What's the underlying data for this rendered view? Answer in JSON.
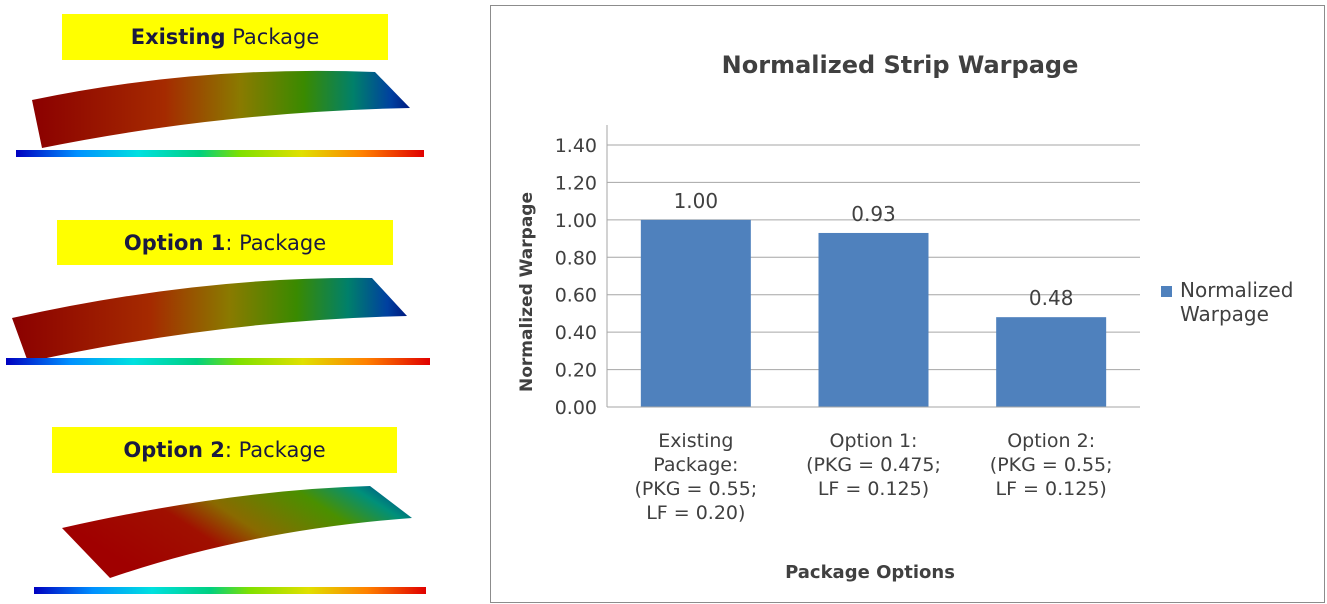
{
  "panels": [
    {
      "bold": "Existing",
      "rest": " Package"
    },
    {
      "bold": "Option 1",
      "rest": ": Package"
    },
    {
      "bold": "Option 2",
      "rest": ": Package"
    }
  ],
  "chart_data": {
    "type": "bar",
    "title": "Normalized Strip Warpage",
    "x_label": "Package Options",
    "y_label": "Normalized Warpage",
    "categories": [
      [
        "Existing",
        "Package:",
        "(PKG = 0.55;",
        "LF = 0.20)"
      ],
      [
        "Option 1:",
        "(PKG = 0.475;",
        "LF = 0.125)"
      ],
      [
        "Option 2:",
        "(PKG = 0.55;",
        "LF = 0.125)"
      ]
    ],
    "series": [
      {
        "name": "Normalized Warpage",
        "color": "#4f81bd",
        "values": [
          1.0,
          0.93,
          0.48
        ],
        "value_labels": [
          "1.00",
          "0.93",
          "0.48"
        ]
      }
    ],
    "ylim": [
      0,
      1.4
    ],
    "yticks": [
      {
        "value": 0,
        "label": "0.00"
      },
      {
        "value": 0.2,
        "label": "0.20"
      },
      {
        "value": 0.4,
        "label": "0.40"
      },
      {
        "value": 0.6,
        "label": "0.60"
      },
      {
        "value": 0.8,
        "label": "0.80"
      },
      {
        "value": 1.0,
        "label": "1.00"
      },
      {
        "value": 1.2,
        "label": "1.20"
      },
      {
        "value": 1.4,
        "label": "1.40"
      }
    ],
    "grid": true,
    "legend": "right"
  }
}
